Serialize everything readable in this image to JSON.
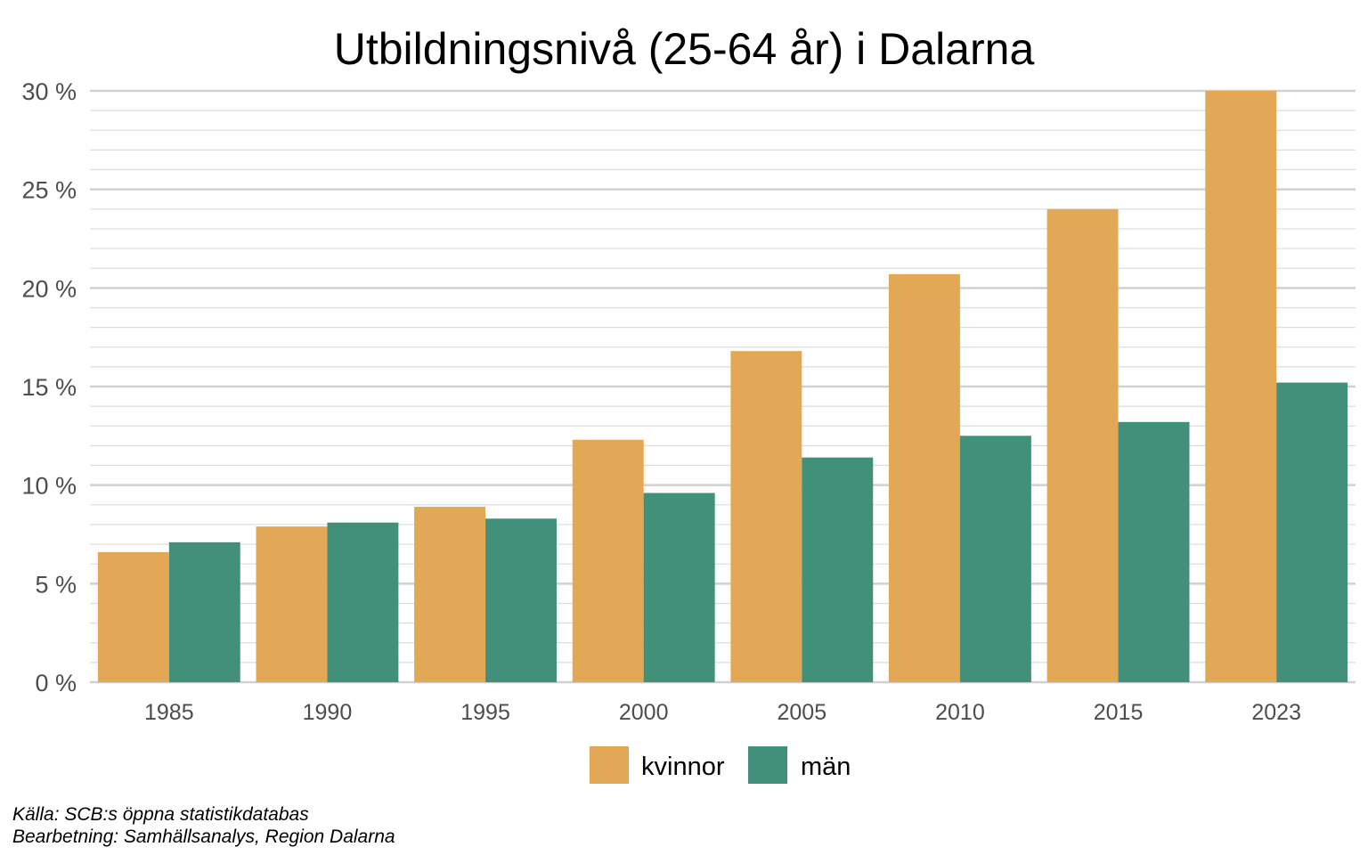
{
  "chart_data": {
    "type": "bar",
    "title": "Utbildningsnivå (25-64 år) i Dalarna",
    "categories": [
      "1985",
      "1990",
      "1995",
      "2000",
      "2005",
      "2010",
      "2015",
      "2023"
    ],
    "series": [
      {
        "name": "kvinnor",
        "color": "#E2A855",
        "values": [
          6.6,
          7.9,
          8.9,
          12.3,
          16.8,
          20.7,
          24.0,
          30.0
        ]
      },
      {
        "name": "män",
        "color": "#43907A",
        "values": [
          7.1,
          8.1,
          8.3,
          9.6,
          11.4,
          12.5,
          13.2,
          15.2
        ]
      }
    ],
    "ylim": [
      0,
      30
    ],
    "yticks": [
      0,
      5,
      10,
      15,
      20,
      25,
      30
    ],
    "ytick_labels": [
      "0 %",
      "5 %",
      "10 %",
      "15 %",
      "20 %",
      "25 %",
      "30 %"
    ],
    "grid": true,
    "legend_position": "bottom",
    "xlabel": "",
    "ylabel": ""
  },
  "caption": {
    "source": "Källa: SCB:s öppna statistikdatabas",
    "processing": "Bearbetning: Samhällsanalys, Region Dalarna"
  }
}
